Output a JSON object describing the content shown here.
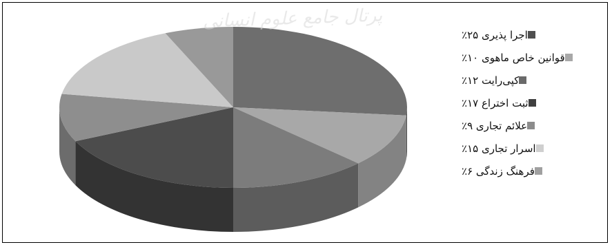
{
  "chart_data": {
    "type": "pie",
    "title": "",
    "slices": [
      {
        "label": "اجرا پذیری ۲۵٪",
        "value": 25,
        "color": "#6e6e6e",
        "side": "#4e4e4e"
      },
      {
        "label": "قوانین خاص ماهوی ۱۰٪",
        "value": 10,
        "color": "#a8a8a8",
        "side": "#838383"
      },
      {
        "label": "کپی‌رایت ۱۲٪",
        "value": 12,
        "color": "#7c7c7c",
        "side": "#5c5c5c"
      },
      {
        "label": "ثبت اختراع ۱۷٪",
        "value": 17,
        "color": "#4c4c4c",
        "side": "#333333"
      },
      {
        "label": "علائم تجاری ۹٪",
        "value": 9,
        "color": "#8e8e8e",
        "side": "#6c6c6c"
      },
      {
        "label": "اسرار تجاری ۱۵٪",
        "value": 15,
        "color": "#c9c9c9",
        "side": "#a2a2a2"
      },
      {
        "label": "فرهنگ زندگی ۶٪",
        "value": 6,
        "color": "#999999",
        "side": "#777777"
      }
    ]
  },
  "watermark": "پرتال جامع علوم انسانی",
  "legend_swatch_colors": [
    "#4f4f4f",
    "#a8a8a8",
    "#6a6a6a",
    "#3f3f3f",
    "#8c8c8c",
    "#cfcfcf",
    "#a0a0a0"
  ]
}
